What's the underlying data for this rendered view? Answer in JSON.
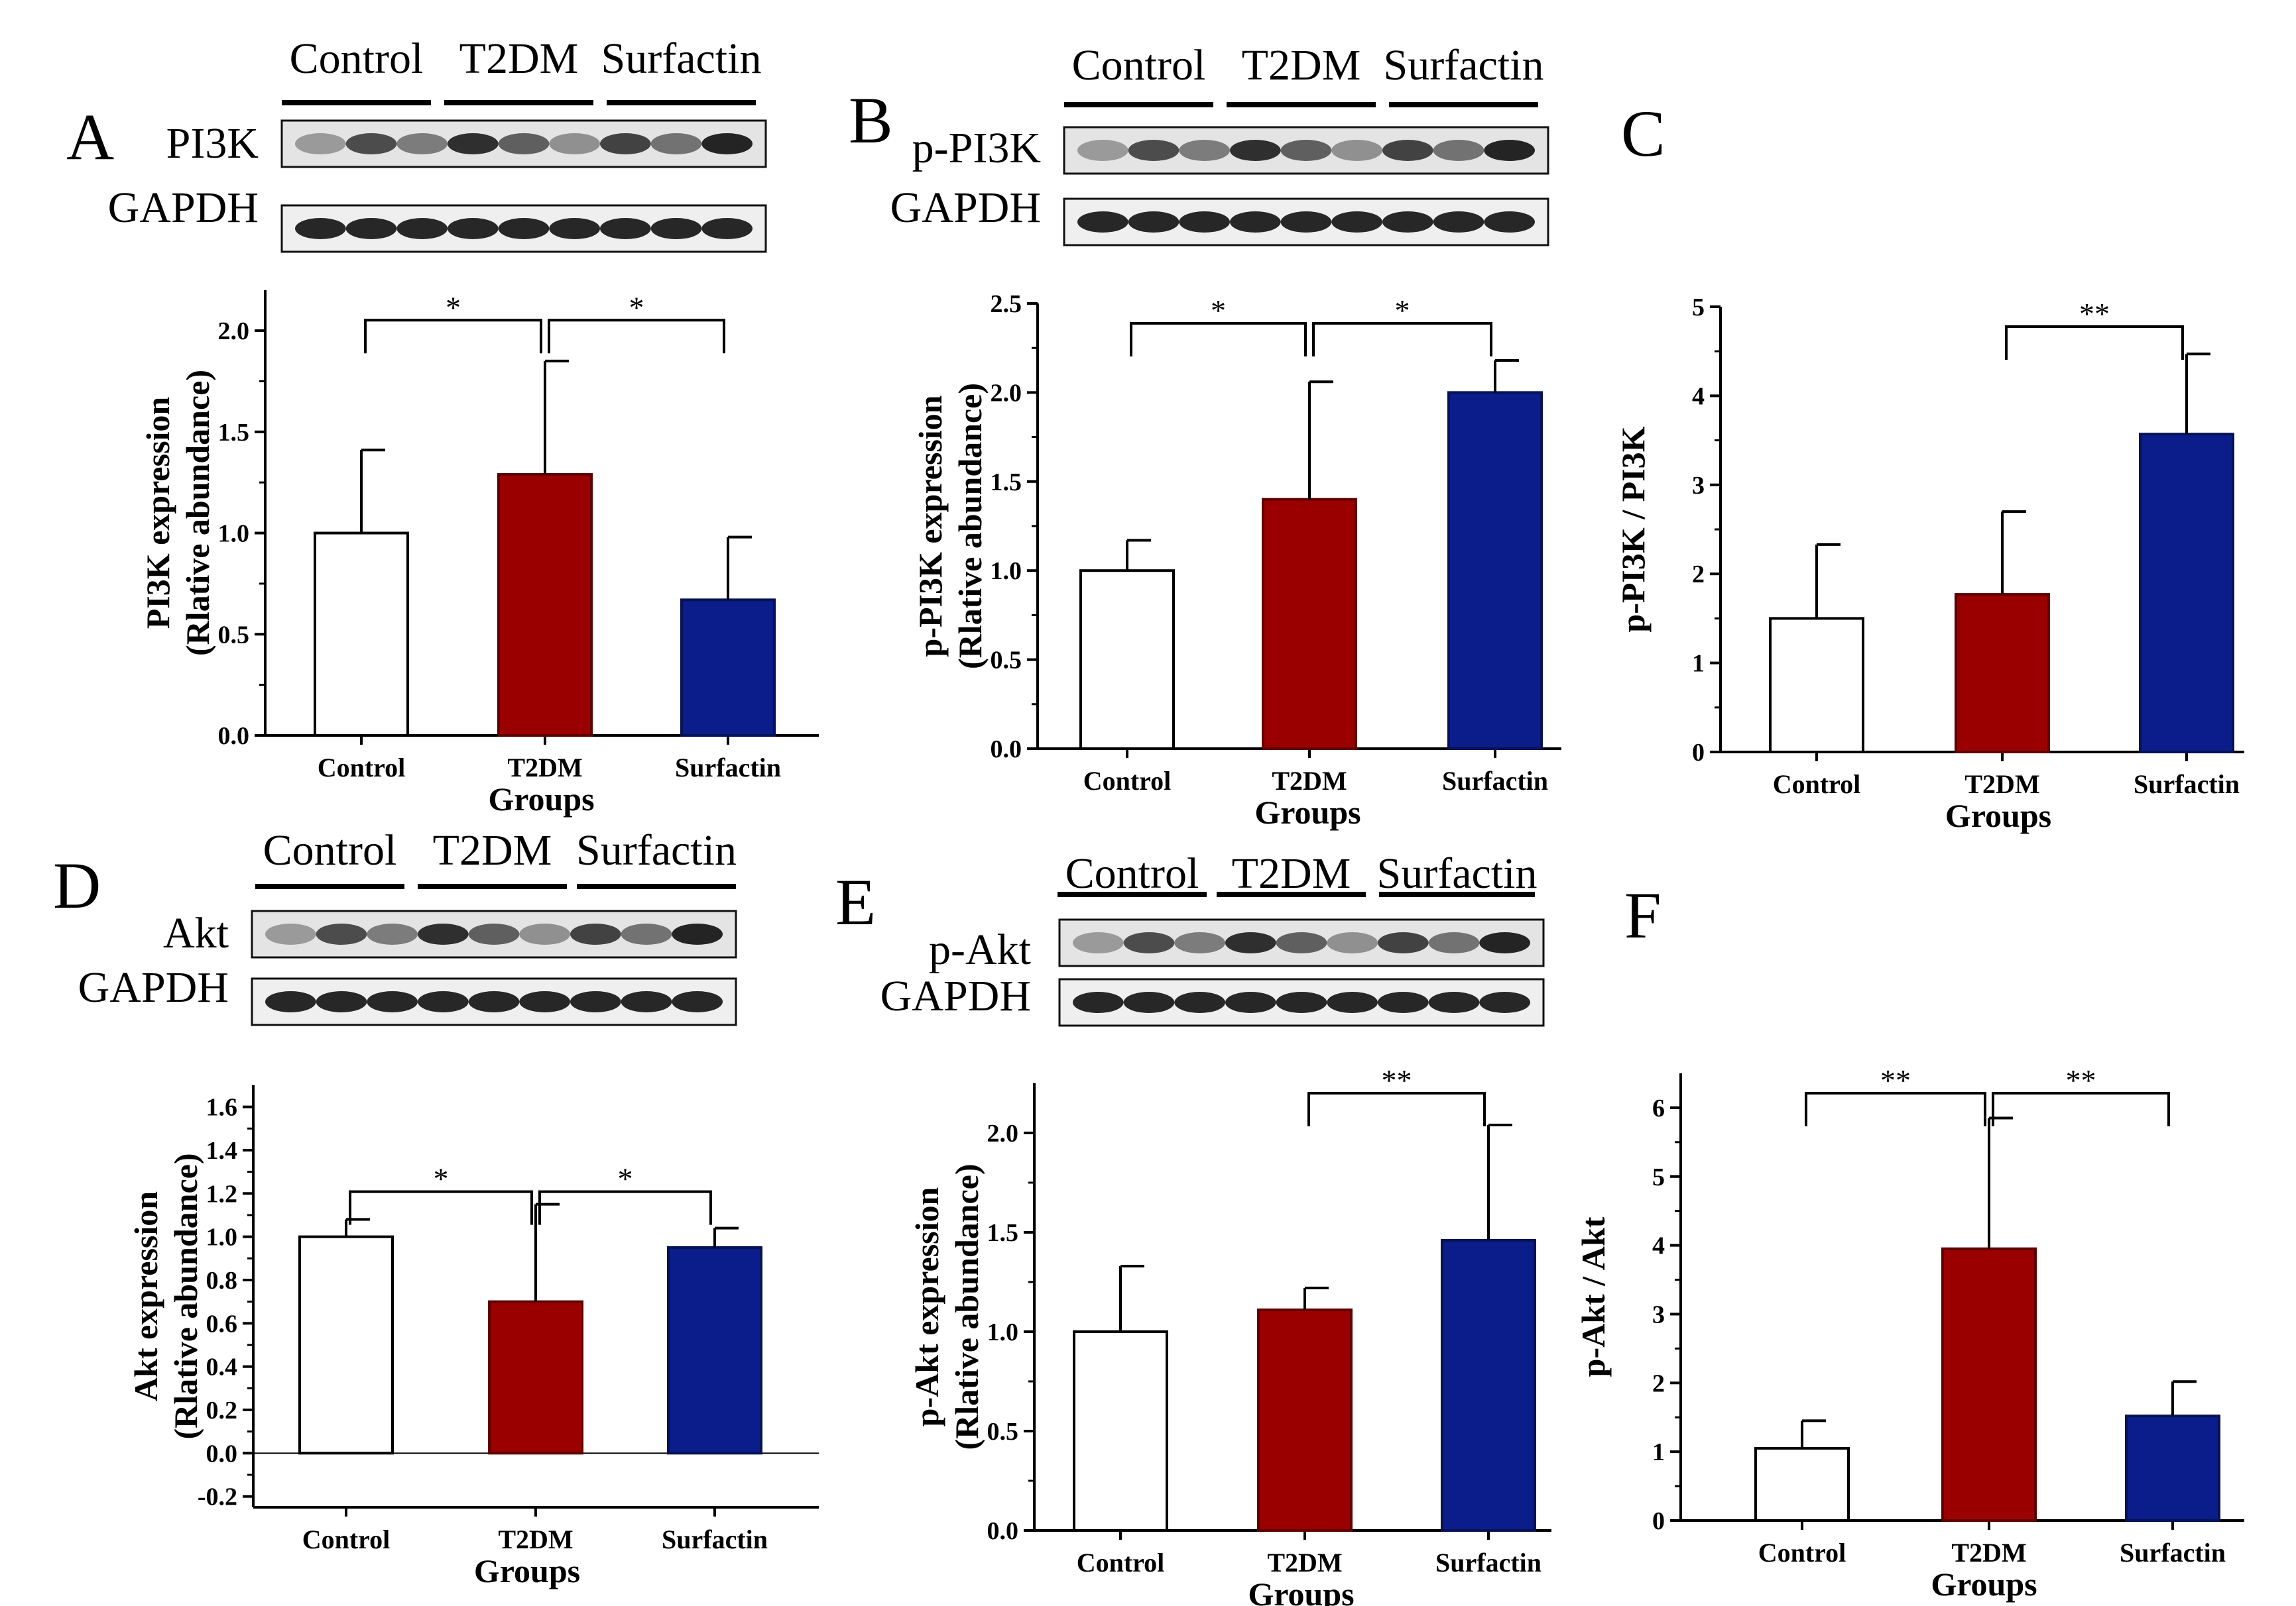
{
  "colors": {
    "control": "#ffffff",
    "t2dm": "#9b0000",
    "surfactin": "#0a1d8a",
    "axis": "#000000"
  },
  "chart_data": [
    {
      "panel": "A",
      "type": "bar",
      "blot_groups": [
        "Control",
        "T2DM",
        "Surfactin"
      ],
      "blot_labels": [
        "PI3K",
        "GAPDH"
      ],
      "categories": [
        "Control",
        "T2DM",
        "Surfactin"
      ],
      "values": [
        1.0,
        1.29,
        0.67
      ],
      "errors": [
        0.41,
        0.56,
        0.31
      ],
      "ylabel": "PI3K expression",
      "ylabel2": "(Rlative abundance)",
      "xlabel": "Groups",
      "ylim": [
        0,
        2.2
      ],
      "ticks": [
        "0.0",
        "0.5",
        "1.0",
        "1.5",
        "2.0"
      ],
      "significance": [
        {
          "from": 0,
          "to": 1,
          "label": "*",
          "level": 2.15
        },
        {
          "from": 1,
          "to": 2,
          "label": "*",
          "level": 2.15
        }
      ]
    },
    {
      "panel": "B",
      "type": "bar",
      "blot_groups": [
        "Control",
        "T2DM",
        "Surfactin"
      ],
      "blot_labels": [
        "p-PI3K",
        "GAPDH"
      ],
      "categories": [
        "Control",
        "T2DM",
        "Surfactin"
      ],
      "values": [
        1.0,
        1.4,
        2.0
      ],
      "errors": [
        0.17,
        0.66,
        0.18
      ],
      "ylabel": "p-PI3K expression",
      "ylabel2": "(Rlative abundance)",
      "xlabel": "Groups",
      "ylim": [
        0,
        2.5
      ],
      "ticks": [
        "0.0",
        "0.5",
        "1.0",
        "1.5",
        "2.0",
        "2.5"
      ],
      "significance": [
        {
          "from": 0,
          "to": 1,
          "label": "*",
          "level": 2.5
        },
        {
          "from": 1,
          "to": 2,
          "label": "*",
          "level": 2.5
        }
      ]
    },
    {
      "panel": "C",
      "type": "bar",
      "categories": [
        "Control",
        "T2DM",
        "Surfactin"
      ],
      "values": [
        1.5,
        1.77,
        3.57
      ],
      "errors": [
        0.83,
        0.93,
        0.9
      ],
      "ylabel": "p-PI3K / PI3K",
      "ylabel2": "",
      "xlabel": "Groups",
      "ylim": [
        0,
        5
      ],
      "ticks": [
        "0",
        "1",
        "2",
        "3",
        "4",
        "5"
      ],
      "significance": [
        {
          "from": 1,
          "to": 2,
          "label": "**",
          "level": 5.0
        }
      ]
    },
    {
      "panel": "D",
      "type": "bar",
      "blot_groups": [
        "Control",
        "T2DM",
        "Surfactin"
      ],
      "blot_labels": [
        "Akt",
        "GAPDH"
      ],
      "categories": [
        "Control",
        "T2DM",
        "Surfactin"
      ],
      "values": [
        1.0,
        0.7,
        0.95
      ],
      "errors": [
        0.08,
        0.45,
        0.09
      ],
      "ylabel": "Akt expression",
      "ylabel2": "(Rlative abundance)",
      "xlabel": "Groups",
      "ylim": [
        -0.25,
        1.7
      ],
      "ticks": [
        "-0.2",
        "0.0",
        "0.2",
        "0.4",
        "0.6",
        "0.8",
        "1.0",
        "1.2",
        "1.4",
        "1.6"
      ],
      "significance": [
        {
          "from": 0,
          "to": 1,
          "label": "*",
          "level": 1.3
        },
        {
          "from": 1,
          "to": 2,
          "label": "*",
          "level": 1.3
        }
      ]
    },
    {
      "panel": "E",
      "type": "bar",
      "blot_groups": [
        "Control",
        "T2DM",
        "Surfactin"
      ],
      "blot_labels": [
        "p-Akt",
        "GAPDH"
      ],
      "categories": [
        "Control",
        "T2DM",
        "Surfactin"
      ],
      "values": [
        1.0,
        1.11,
        1.46
      ],
      "errors": [
        0.33,
        0.11,
        0.58
      ],
      "ylabel": "p-Akt expression",
      "ylabel2": "(Rlative abundance)",
      "xlabel": "Groups",
      "ylim": [
        0,
        2.25
      ],
      "ticks": [
        "0.0",
        "0.5",
        "1.0",
        "1.5",
        "2.0"
      ],
      "significance": [
        {
          "from": 1,
          "to": 2,
          "label": "**",
          "level": 2.3
        }
      ]
    },
    {
      "panel": "F",
      "type": "bar",
      "categories": [
        "Control",
        "T2DM",
        "Surfactin"
      ],
      "values": [
        1.05,
        3.95,
        1.52
      ],
      "errors": [
        0.4,
        1.9,
        0.5
      ],
      "ylabel": "p-Akt / Akt",
      "ylabel2": "",
      "xlabel": "Groups",
      "ylim": [
        0,
        6.5
      ],
      "ticks": [
        "0",
        "1",
        "2",
        "3",
        "4",
        "5",
        "6"
      ],
      "significance": [
        {
          "from": 0,
          "to": 1,
          "label": "**",
          "level": 6.5
        },
        {
          "from": 1,
          "to": 2,
          "label": "**",
          "level": 6.5
        }
      ]
    }
  ]
}
